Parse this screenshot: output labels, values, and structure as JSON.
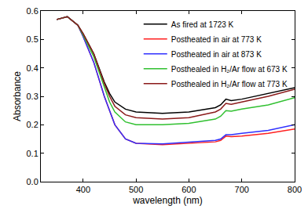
{
  "chart_data": {
    "type": "line",
    "x_label": "wavelength (nm)",
    "y_label": "Absorbance",
    "xlim": [
      320,
      800
    ],
    "xticks": [
      400,
      500,
      600,
      700,
      800
    ],
    "ylim": [
      0,
      0.6
    ],
    "yticks": [
      {
        "value": 0,
        "label": "0.0"
      },
      {
        "value": 0.1,
        "label": "0.1"
      },
      {
        "value": 0.2,
        "label": "0.2"
      },
      {
        "value": 0.3,
        "label": "0.3"
      },
      {
        "value": 0.4,
        "label": "0.4"
      },
      {
        "value": 0.5,
        "label": "0.5"
      },
      {
        "value": 0.6,
        "label": "0.6"
      }
    ],
    "grid": false,
    "legend": "upper right",
    "line_style": "solid",
    "x": [
      350,
      370,
      390,
      400,
      420,
      440,
      450,
      460,
      480,
      500,
      550,
      600,
      650,
      660,
      670,
      680,
      700,
      750,
      800
    ],
    "series": [
      {
        "name": "As fired at 1723 K",
        "color": "#000000",
        "values": [
          0.57,
          0.58,
          0.55,
          0.52,
          0.45,
          0.35,
          0.31,
          0.28,
          0.255,
          0.245,
          0.24,
          0.245,
          0.26,
          0.27,
          0.29,
          0.285,
          0.29,
          0.31,
          0.33
        ]
      },
      {
        "name": "Postheated in air at 773 K",
        "color": "#ff2020",
        "values": [
          0.57,
          0.58,
          0.55,
          0.51,
          0.42,
          0.3,
          0.25,
          0.2,
          0.15,
          0.135,
          0.13,
          0.135,
          0.14,
          0.145,
          0.16,
          0.158,
          0.16,
          0.17,
          0.185
        ]
      },
      {
        "name": "Postheated in air at 873 K",
        "color": "#3030ff",
        "values": [
          0.57,
          0.58,
          0.55,
          0.51,
          0.42,
          0.3,
          0.25,
          0.2,
          0.15,
          0.135,
          0.133,
          0.138,
          0.145,
          0.15,
          0.165,
          0.165,
          0.17,
          0.18,
          0.2
        ]
      },
      {
        "name": "Posthealed in H₂/Ar flow at 673 K",
        "color": "#30c030",
        "values": [
          0.57,
          0.58,
          0.55,
          0.515,
          0.44,
          0.33,
          0.28,
          0.245,
          0.21,
          0.2,
          0.2,
          0.205,
          0.22,
          0.23,
          0.25,
          0.248,
          0.255,
          0.27,
          0.295
        ]
      },
      {
        "name": "Posthealed in H₂/Ar flow at 773 K",
        "color": "#8b1a1a",
        "values": [
          0.57,
          0.58,
          0.55,
          0.52,
          0.45,
          0.345,
          0.3,
          0.265,
          0.235,
          0.225,
          0.22,
          0.225,
          0.245,
          0.255,
          0.275,
          0.272,
          0.28,
          0.3,
          0.325
        ]
      }
    ]
  }
}
